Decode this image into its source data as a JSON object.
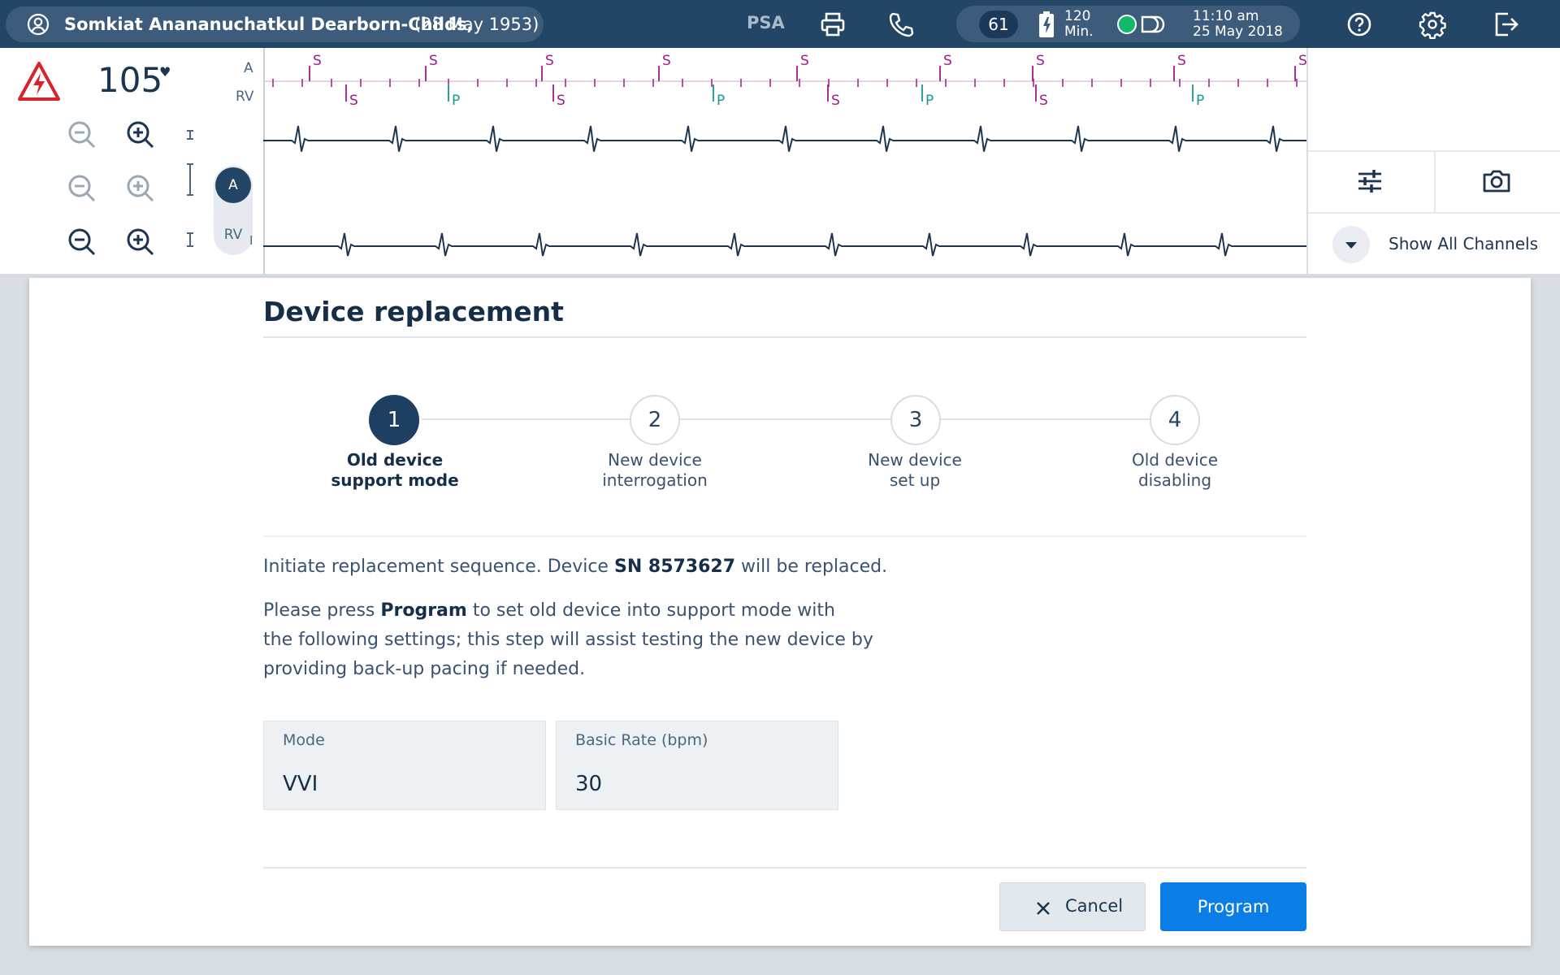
{
  "topbar": {
    "patient_name": "Somkiat Anananuchatkul Dearborn-Childs,",
    "patient_dob": "(28 May 1953)",
    "session_type": "PSA",
    "heart_rate_badge": "61",
    "battery_value": "120",
    "battery_unit": "Min.",
    "time": "11:10 am",
    "date": "25 May 2018",
    "icons": [
      "user-icon",
      "printer-icon",
      "phone-icon",
      "battery-icon",
      "connection-icon",
      "device-icon",
      "help-icon",
      "gear-icon",
      "exit-icon"
    ]
  },
  "egm": {
    "heart_rate": "105",
    "heart_symbol": "♥",
    "marker_channel_labels": [
      "A",
      "RV"
    ],
    "channel_toggle": [
      "A",
      "RV"
    ],
    "lead_label": "I",
    "markers_top": [
      "S",
      "S",
      "S",
      "S",
      "S",
      "S",
      "S",
      "S",
      "S"
    ],
    "markers_bottom": [
      "S",
      "P",
      "S",
      "P",
      "S",
      "P",
      "S",
      "P"
    ],
    "show_all_channels": "Show All Channels",
    "colors": {
      "sense_marker": "#a0188f",
      "pace_marker": "#16998f",
      "trace": "#1c3450"
    }
  },
  "dialog": {
    "title": "Device replacement",
    "steps": [
      {
        "number": "1",
        "line1": "Old device",
        "line2": "support mode"
      },
      {
        "number": "2",
        "line1": "New device",
        "line2": "interrogation"
      },
      {
        "number": "3",
        "line1": "New device",
        "line2": "set up"
      },
      {
        "number": "4",
        "line1": "Old device",
        "line2": "disabling"
      }
    ],
    "intro_pre": "Initiate replacement sequence. Device ",
    "intro_sn": "SN 8573627",
    "intro_post": " will be replaced.",
    "instr_pre": "Please press ",
    "instr_bold": "Program",
    "instr_line1_post": " to set old device into support mode with",
    "instr_line2": "the following settings; this step will assist testing the new device by",
    "instr_line3": "providing back-up pacing if needed.",
    "fields": [
      {
        "label": "Mode",
        "value": "VVI"
      },
      {
        "label": "Basic Rate (bpm)",
        "value": "30"
      }
    ],
    "cancel_label": "Cancel",
    "program_label": "Program",
    "colors": {
      "primary": "#0a7de6",
      "navy": "#1e3e62"
    }
  }
}
